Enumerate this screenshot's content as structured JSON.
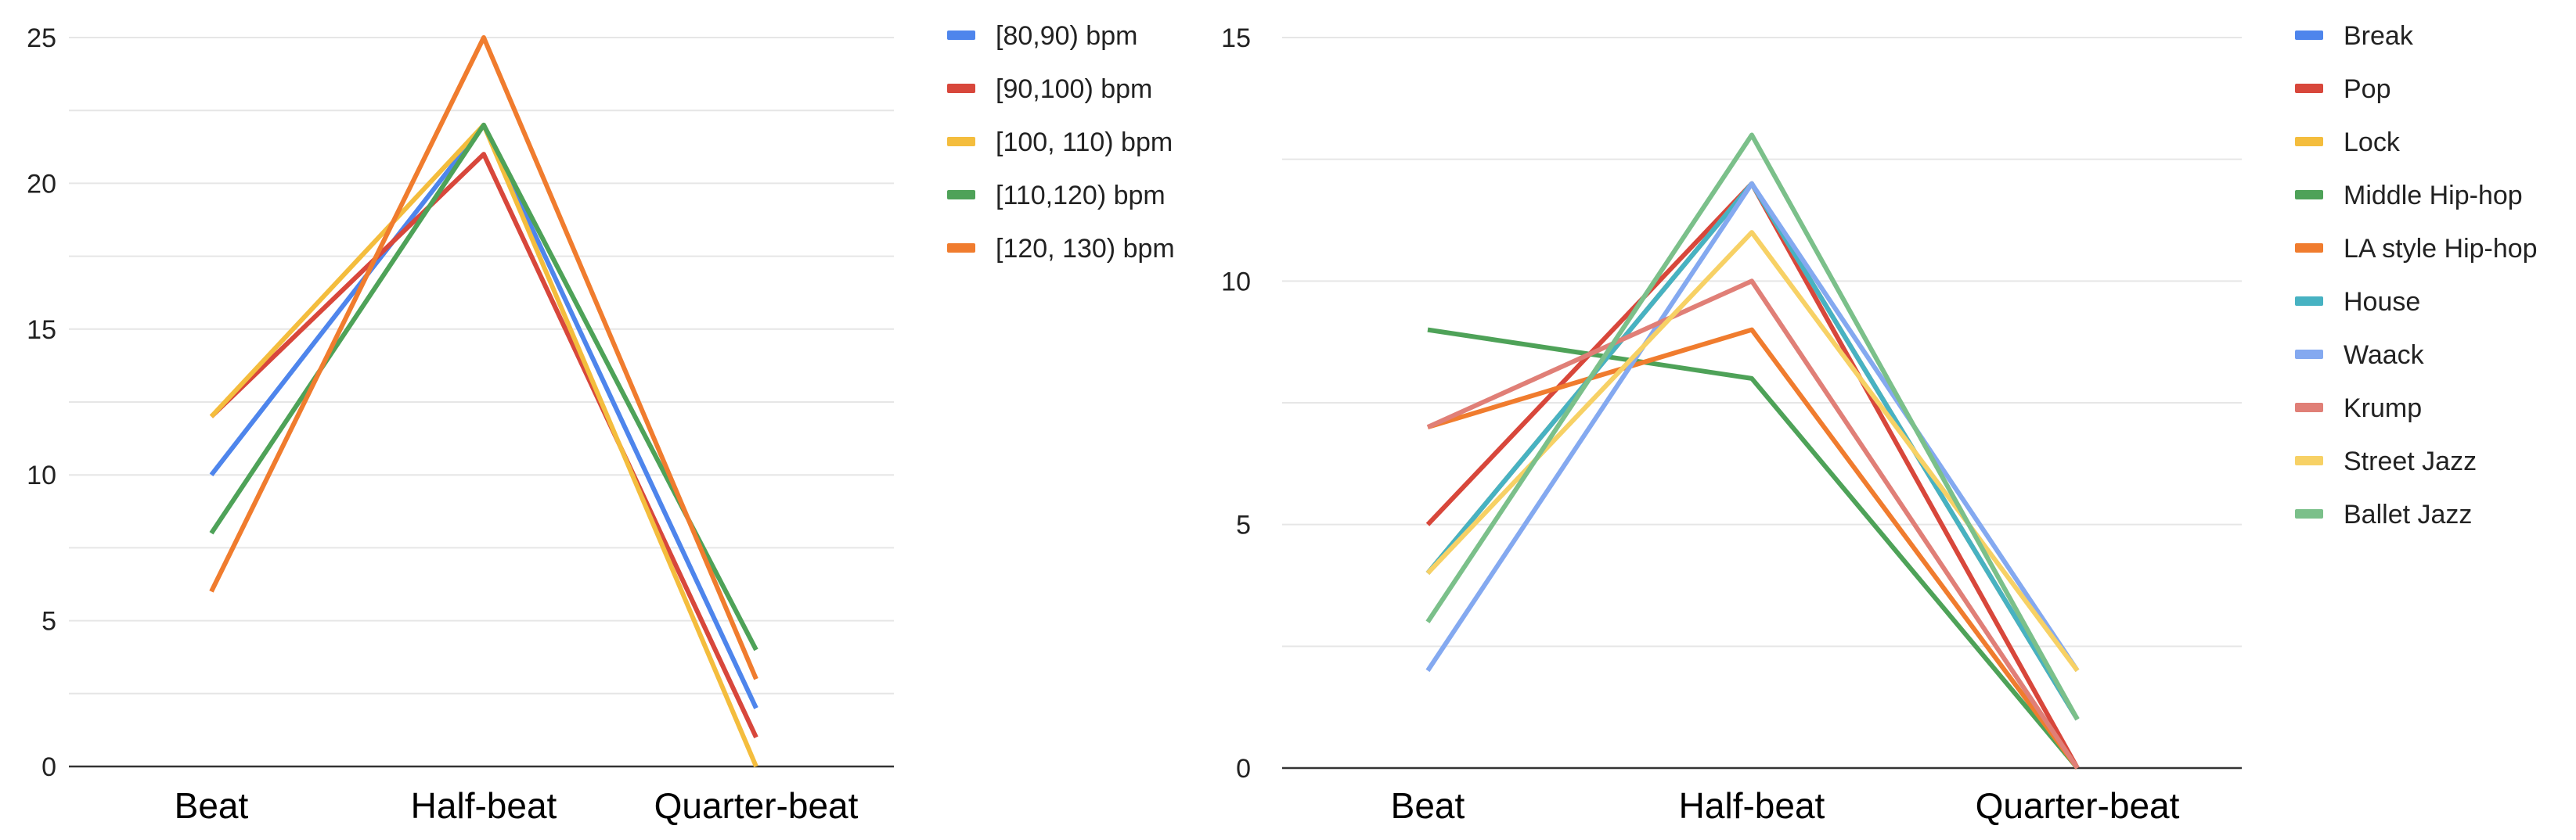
{
  "chart_data": [
    {
      "type": "line",
      "categories": [
        "Beat",
        "Half-beat",
        "Quarter-beat"
      ],
      "ylim": [
        0,
        25
      ],
      "yticks": [
        0,
        5,
        10,
        15,
        20,
        25
      ],
      "grid": true,
      "legend_position": "right",
      "series": [
        {
          "name": "[80,90) bpm",
          "color": "#4e85ec",
          "values": [
            10,
            22,
            2
          ]
        },
        {
          "name": "[90,100) bpm",
          "color": "#d8473b",
          "values": [
            12,
            21,
            1
          ]
        },
        {
          "name": "[100, 110) bpm",
          "color": "#f4bd3d",
          "values": [
            12,
            22,
            0
          ]
        },
        {
          "name": "[110,120) bpm",
          "color": "#4ea258",
          "values": [
            8,
            22,
            4
          ]
        },
        {
          "name": "[120, 130) bpm",
          "color": "#f07c2e",
          "values": [
            6,
            25,
            3
          ]
        }
      ]
    },
    {
      "type": "line",
      "categories": [
        "Beat",
        "Half-beat",
        "Quarter-beat"
      ],
      "ylim": [
        0,
        15
      ],
      "yticks": [
        0,
        5,
        10,
        15
      ],
      "grid": true,
      "legend_position": "right",
      "series": [
        {
          "name": "Break",
          "color": "#4e85ec",
          "values": [
            4,
            12,
            1
          ]
        },
        {
          "name": "Pop",
          "color": "#d8473b",
          "values": [
            5,
            12,
            0
          ]
        },
        {
          "name": "Lock",
          "color": "#f4bd3d",
          "values": [
            4,
            12,
            1
          ]
        },
        {
          "name": "Middle Hip-hop",
          "color": "#4ea258",
          "values": [
            9,
            8,
            0
          ]
        },
        {
          "name": "LA style Hip-hop",
          "color": "#f07c2e",
          "values": [
            7,
            9,
            0
          ]
        },
        {
          "name": "House",
          "color": "#47b2c2",
          "values": [
            4,
            12,
            1
          ]
        },
        {
          "name": "Waack",
          "color": "#84a9f0",
          "values": [
            2,
            12,
            2
          ]
        },
        {
          "name": "Krump",
          "color": "#e07f77",
          "values": [
            7,
            10,
            0
          ]
        },
        {
          "name": "Street Jazz",
          "color": "#f7d165",
          "values": [
            4,
            11,
            2
          ]
        },
        {
          "name": "Ballet Jazz",
          "color": "#7bc08a",
          "values": [
            3,
            13,
            1
          ]
        }
      ]
    }
  ]
}
